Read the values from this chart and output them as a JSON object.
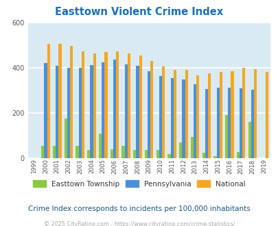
{
  "title": "Easttown Violent Crime Index",
  "subtitle": "Crime Index corresponds to incidents per 100,000 inhabitants",
  "footer": "© 2025 CityRating.com - https://www.cityrating.com/crime-statistics/",
  "years": [
    1999,
    2000,
    2001,
    2002,
    2003,
    2004,
    2005,
    2006,
    2007,
    2008,
    2009,
    2010,
    2011,
    2012,
    2013,
    2014,
    2015,
    2016,
    2017,
    2018,
    2019
  ],
  "easttown": [
    0,
    55,
    55,
    175,
    55,
    35,
    108,
    40,
    55,
    35,
    35,
    35,
    18,
    70,
    95,
    25,
    8,
    192,
    28,
    160,
    0
  ],
  "pennsylvania": [
    0,
    420,
    410,
    400,
    400,
    412,
    423,
    437,
    415,
    410,
    385,
    365,
    355,
    348,
    328,
    307,
    312,
    312,
    308,
    302,
    0
  ],
  "national": [
    0,
    507,
    507,
    497,
    473,
    463,
    470,
    474,
    463,
    455,
    430,
    405,
    390,
    390,
    368,
    375,
    383,
    386,
    400,
    395,
    383
  ],
  "bar_width": 0.25,
  "ylim": [
    0,
    600
  ],
  "yticks": [
    0,
    200,
    400,
    600
  ],
  "bg_color": "#daeaf2",
  "easttown_color": "#8dc83f",
  "pennsylvania_color": "#4a90d9",
  "national_color": "#f5a623",
  "title_color": "#1a6fba",
  "subtitle_color": "#1a5580",
  "footer_color": "#aaaaaa",
  "grid_color": "#ffffff"
}
